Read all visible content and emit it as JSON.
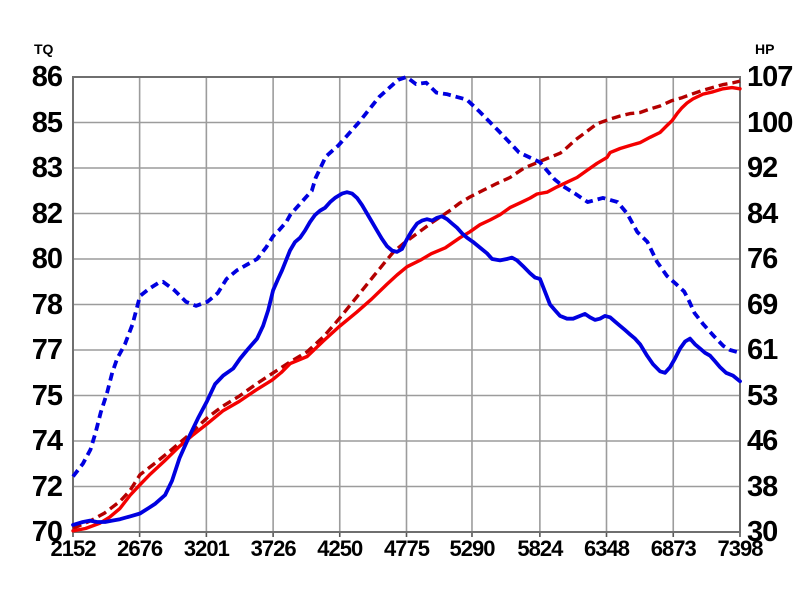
{
  "chart_data": {
    "type": "line",
    "title": "",
    "legend": "none",
    "grid": true,
    "x_axis": {
      "range": [
        2152,
        7398
      ],
      "ticks": [
        2152,
        2676,
        3201,
        3726,
        4250,
        4775,
        5290,
        5824,
        6348,
        6873,
        7398
      ],
      "tick_labels": [
        "2152",
        "2676",
        "3201",
        "3726",
        "4250",
        "4775",
        "5290",
        "5824",
        "6348",
        "6873",
        "7398"
      ]
    },
    "left_axis": {
      "title": "TQ",
      "range": [
        70,
        86
      ],
      "tick_labels_top_to_bottom": [
        "86",
        "85",
        "83",
        "82",
        "80",
        "78",
        "77",
        "75",
        "74",
        "72",
        "70"
      ]
    },
    "right_axis": {
      "title": "HP",
      "range": [
        30,
        107
      ],
      "tick_labels_top_to_bottom": [
        "107",
        "100",
        "92",
        "84",
        "76",
        "69",
        "61",
        "53",
        "46",
        "38",
        "30"
      ]
    },
    "series": [
      {
        "name": "horsepower-dashed-run",
        "axis": "right",
        "color": "#b40000",
        "style": "dashed",
        "points": [
          [
            2152,
            30.6
          ],
          [
            2290,
            31.9
          ],
          [
            2400,
            33.2
          ],
          [
            2522,
            35.2
          ],
          [
            2600,
            37.0
          ],
          [
            2679,
            39.7
          ],
          [
            2800,
            41.7
          ],
          [
            2920,
            43.8
          ],
          [
            3040,
            46.0
          ],
          [
            3206,
            49.3
          ],
          [
            3330,
            51.3
          ],
          [
            3460,
            53.0
          ],
          [
            3590,
            55.0
          ],
          [
            3718,
            56.8
          ],
          [
            3860,
            58.8
          ],
          [
            3993,
            60.5
          ],
          [
            4120,
            63.0
          ],
          [
            4242,
            66.0
          ],
          [
            4400,
            70.2
          ],
          [
            4520,
            73.4
          ],
          [
            4600,
            75.5
          ],
          [
            4669,
            77.3
          ],
          [
            4750,
            78.8
          ],
          [
            4826,
            80.0
          ],
          [
            4970,
            82.3
          ],
          [
            5110,
            84.3
          ],
          [
            5196,
            85.7
          ],
          [
            5274,
            86.7
          ],
          [
            5384,
            87.9
          ],
          [
            5487,
            89.0
          ],
          [
            5589,
            90.0
          ],
          [
            5700,
            91.6
          ],
          [
            5778,
            92.3
          ],
          [
            5880,
            93.2
          ],
          [
            5983,
            94.1
          ],
          [
            6014,
            94.6
          ],
          [
            6100,
            96.3
          ],
          [
            6200,
            97.9
          ],
          [
            6274,
            99.1
          ],
          [
            6376,
            99.9
          ],
          [
            6455,
            100.4
          ],
          [
            6533,
            100.8
          ],
          [
            6612,
            101.0
          ],
          [
            6691,
            101.6
          ],
          [
            6769,
            102.1
          ],
          [
            6863,
            103.0
          ],
          [
            6942,
            103.5
          ],
          [
            7020,
            104.1
          ],
          [
            7100,
            104.7
          ],
          [
            7180,
            105.2
          ],
          [
            7260,
            105.7
          ],
          [
            7340,
            106.0
          ],
          [
            7398,
            106.3
          ]
        ]
      },
      {
        "name": "horsepower-solid-run",
        "axis": "right",
        "color": "#f40000",
        "style": "solid",
        "points": [
          [
            2152,
            30.2
          ],
          [
            2250,
            30.6
          ],
          [
            2364,
            31.5
          ],
          [
            2440,
            32.5
          ],
          [
            2522,
            34.0
          ],
          [
            2600,
            36.2
          ],
          [
            2679,
            38.0
          ],
          [
            2760,
            39.8
          ],
          [
            2870,
            42.0
          ],
          [
            2990,
            44.5
          ],
          [
            3100,
            46.5
          ],
          [
            3206,
            48.3
          ],
          [
            3330,
            50.5
          ],
          [
            3460,
            52.1
          ],
          [
            3590,
            54.0
          ],
          [
            3718,
            55.7
          ],
          [
            3790,
            57.0
          ],
          [
            3860,
            58.5
          ],
          [
            3993,
            59.7
          ],
          [
            4120,
            62.3
          ],
          [
            4242,
            64.7
          ],
          [
            4383,
            67.2
          ],
          [
            4500,
            69.4
          ],
          [
            4620,
            71.9
          ],
          [
            4700,
            73.5
          ],
          [
            4780,
            74.9
          ],
          [
            4892,
            76.1
          ],
          [
            4970,
            77.1
          ],
          [
            5080,
            78.1
          ],
          [
            5196,
            79.8
          ],
          [
            5274,
            80.8
          ],
          [
            5353,
            82.0
          ],
          [
            5432,
            82.8
          ],
          [
            5510,
            83.7
          ],
          [
            5589,
            84.9
          ],
          [
            5668,
            85.7
          ],
          [
            5746,
            86.5
          ],
          [
            5801,
            87.2
          ],
          [
            5880,
            87.5
          ],
          [
            5959,
            88.4
          ],
          [
            6037,
            89.2
          ],
          [
            6116,
            90.0
          ],
          [
            6195,
            91.2
          ],
          [
            6274,
            92.4
          ],
          [
            6352,
            93.4
          ],
          [
            6376,
            94.2
          ],
          [
            6455,
            94.9
          ],
          [
            6533,
            95.4
          ],
          [
            6612,
            95.9
          ],
          [
            6691,
            96.8
          ],
          [
            6769,
            97.6
          ],
          [
            6824,
            98.8
          ],
          [
            6863,
            99.6
          ],
          [
            6903,
            100.8
          ],
          [
            6942,
            101.8
          ],
          [
            6981,
            102.6
          ],
          [
            7028,
            103.3
          ],
          [
            7107,
            104.1
          ],
          [
            7186,
            104.5
          ],
          [
            7264,
            105.0
          ],
          [
            7335,
            105.2
          ],
          [
            7398,
            105.0
          ]
        ]
      },
      {
        "name": "torque-dashed-run",
        "axis": "left",
        "color": "#0000e0",
        "style": "dashed",
        "points": [
          [
            2152,
            71.95
          ],
          [
            2230,
            72.4
          ],
          [
            2290,
            72.9
          ],
          [
            2330,
            73.5
          ],
          [
            2370,
            74.2
          ],
          [
            2420,
            74.9
          ],
          [
            2460,
            75.6
          ],
          [
            2500,
            76.1
          ],
          [
            2560,
            76.6
          ],
          [
            2620,
            77.3
          ],
          [
            2679,
            78.3
          ],
          [
            2750,
            78.55
          ],
          [
            2820,
            78.75
          ],
          [
            2860,
            78.8
          ],
          [
            2950,
            78.5
          ],
          [
            3040,
            78.1
          ],
          [
            3120,
            77.95
          ],
          [
            3210,
            78.1
          ],
          [
            3290,
            78.4
          ],
          [
            3360,
            78.9
          ],
          [
            3440,
            79.2
          ],
          [
            3520,
            79.4
          ],
          [
            3600,
            79.6
          ],
          [
            3670,
            80.0
          ],
          [
            3726,
            80.4
          ],
          [
            3770,
            80.6
          ],
          [
            3830,
            80.9
          ],
          [
            3860,
            81.15
          ],
          [
            3910,
            81.4
          ],
          [
            3950,
            81.6
          ],
          [
            3990,
            81.8
          ],
          [
            4030,
            82.0
          ],
          [
            4060,
            82.45
          ],
          [
            4140,
            83.2
          ],
          [
            4240,
            83.6
          ],
          [
            4400,
            84.4
          ],
          [
            4560,
            85.3
          ],
          [
            4710,
            85.9
          ],
          [
            4775,
            86.0
          ],
          [
            4850,
            85.75
          ],
          [
            4930,
            85.8
          ],
          [
            5010,
            85.45
          ],
          [
            5090,
            85.4
          ],
          [
            5170,
            85.3
          ],
          [
            5250,
            85.2
          ],
          [
            5345,
            84.8
          ],
          [
            5500,
            84.1
          ],
          [
            5660,
            83.35
          ],
          [
            5825,
            83.0
          ],
          [
            5940,
            82.4
          ],
          [
            6010,
            82.15
          ],
          [
            6100,
            81.9
          ],
          [
            6200,
            81.6
          ],
          [
            6320,
            81.75
          ],
          [
            6435,
            81.6
          ],
          [
            6510,
            81.2
          ],
          [
            6590,
            80.55
          ],
          [
            6670,
            80.2
          ],
          [
            6745,
            79.5
          ],
          [
            6825,
            79.0
          ],
          [
            6900,
            78.7
          ],
          [
            6960,
            78.45
          ],
          [
            7000,
            78.1
          ],
          [
            7040,
            77.7
          ],
          [
            7110,
            77.3
          ],
          [
            7190,
            76.9
          ],
          [
            7265,
            76.55
          ],
          [
            7320,
            76.4
          ],
          [
            7398,
            76.3
          ]
        ]
      },
      {
        "name": "torque-solid-run",
        "axis": "left",
        "color": "#0000e0",
        "style": "solid",
        "points": [
          [
            2152,
            70.25
          ],
          [
            2230,
            70.35
          ],
          [
            2286,
            70.4
          ],
          [
            2340,
            70.35
          ],
          [
            2404,
            70.35
          ],
          [
            2460,
            70.4
          ],
          [
            2522,
            70.45
          ],
          [
            2600,
            70.55
          ],
          [
            2679,
            70.65
          ],
          [
            2750,
            70.85
          ],
          [
            2800,
            71.0
          ],
          [
            2876,
            71.3
          ],
          [
            2931,
            71.8
          ],
          [
            2990,
            72.6
          ],
          [
            3060,
            73.3
          ],
          [
            3135,
            74.0
          ],
          [
            3206,
            74.6
          ],
          [
            3270,
            75.2
          ],
          [
            3333,
            75.5
          ],
          [
            3412,
            75.75
          ],
          [
            3467,
            76.1
          ],
          [
            3522,
            76.4
          ],
          [
            3600,
            76.8
          ],
          [
            3647,
            77.25
          ],
          [
            3687,
            77.8
          ],
          [
            3726,
            78.5
          ],
          [
            3765,
            78.9
          ],
          [
            3796,
            79.2
          ],
          [
            3859,
            79.9
          ],
          [
            3899,
            80.2
          ],
          [
            3938,
            80.35
          ],
          [
            3977,
            80.6
          ],
          [
            4016,
            80.9
          ],
          [
            4056,
            81.15
          ],
          [
            4095,
            81.3
          ],
          [
            4134,
            81.4
          ],
          [
            4174,
            81.6
          ],
          [
            4213,
            81.75
          ],
          [
            4268,
            81.9
          ],
          [
            4307,
            81.95
          ],
          [
            4347,
            81.9
          ],
          [
            4386,
            81.75
          ],
          [
            4425,
            81.5
          ],
          [
            4464,
            81.2
          ],
          [
            4504,
            80.9
          ],
          [
            4543,
            80.6
          ],
          [
            4583,
            80.3
          ],
          [
            4622,
            80.05
          ],
          [
            4661,
            79.9
          ],
          [
            4700,
            79.85
          ],
          [
            4740,
            79.95
          ],
          [
            4779,
            80.3
          ],
          [
            4818,
            80.6
          ],
          [
            4858,
            80.85
          ],
          [
            4897,
            80.95
          ],
          [
            4936,
            81.0
          ],
          [
            4976,
            80.95
          ],
          [
            5015,
            81.05
          ],
          [
            5054,
            81.1
          ],
          [
            5094,
            81.0
          ],
          [
            5133,
            80.85
          ],
          [
            5172,
            80.7
          ],
          [
            5212,
            80.5
          ],
          [
            5251,
            80.35
          ],
          [
            5298,
            80.2
          ],
          [
            5353,
            80.0
          ],
          [
            5408,
            79.8
          ],
          [
            5448,
            79.6
          ],
          [
            5510,
            79.55
          ],
          [
            5565,
            79.6
          ],
          [
            5605,
            79.65
          ],
          [
            5644,
            79.55
          ],
          [
            5691,
            79.35
          ],
          [
            5746,
            79.1
          ],
          [
            5786,
            78.95
          ],
          [
            5825,
            78.9
          ],
          [
            5864,
            78.45
          ],
          [
            5904,
            78.0
          ],
          [
            5943,
            77.8
          ],
          [
            5982,
            77.6
          ],
          [
            6037,
            77.5
          ],
          [
            6085,
            77.5
          ],
          [
            6140,
            77.6
          ],
          [
            6179,
            77.67
          ],
          [
            6218,
            77.55
          ],
          [
            6258,
            77.46
          ],
          [
            6297,
            77.5
          ],
          [
            6336,
            77.6
          ],
          [
            6376,
            77.55
          ],
          [
            6415,
            77.4
          ],
          [
            6454,
            77.25
          ],
          [
            6494,
            77.1
          ],
          [
            6533,
            76.95
          ],
          [
            6572,
            76.8
          ],
          [
            6612,
            76.6
          ],
          [
            6667,
            76.2
          ],
          [
            6714,
            75.9
          ],
          [
            6769,
            75.65
          ],
          [
            6808,
            75.6
          ],
          [
            6848,
            75.8
          ],
          [
            6887,
            76.1
          ],
          [
            6926,
            76.45
          ],
          [
            6966,
            76.7
          ],
          [
            7005,
            76.8
          ],
          [
            7044,
            76.6
          ],
          [
            7084,
            76.45
          ],
          [
            7123,
            76.3
          ],
          [
            7163,
            76.2
          ],
          [
            7202,
            76.0
          ],
          [
            7241,
            75.8
          ],
          [
            7288,
            75.6
          ],
          [
            7343,
            75.5
          ],
          [
            7398,
            75.3
          ]
        ]
      }
    ],
    "style_hints": {
      "gridline_color": "#9c9c9c",
      "border_color": "#6f6f6f",
      "background": "#ffffff"
    }
  }
}
